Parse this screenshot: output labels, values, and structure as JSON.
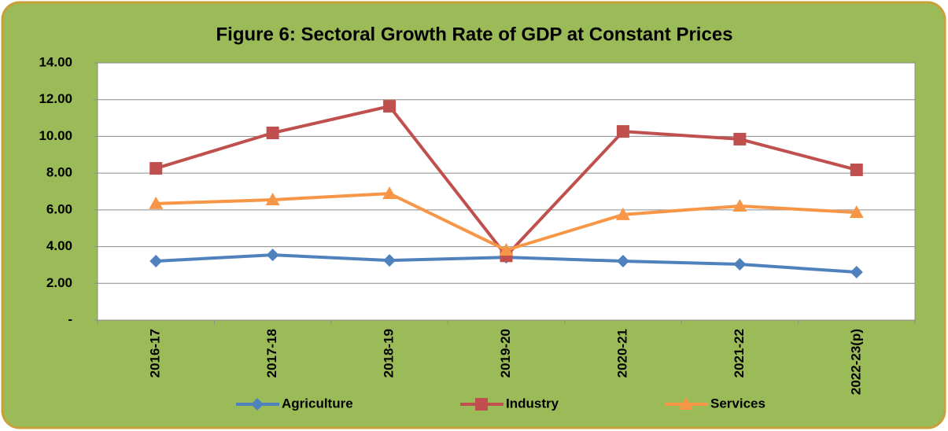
{
  "chart_data": {
    "type": "line",
    "title": "Figure 6: Sectoral Growth Rate of GDP at Constant Prices",
    "categories": [
      "2016-17",
      "2017-18",
      "2018-19",
      "2019-20",
      "2020-21",
      "2021-22",
      "2022-23(p)"
    ],
    "series": [
      {
        "name": "Agriculture",
        "color": "#4f81bd",
        "values": [
          3.21,
          3.55,
          3.25,
          3.42,
          3.21,
          3.04,
          2.61
        ]
      },
      {
        "name": "Industry",
        "color": "#c0504d",
        "values": [
          8.26,
          10.19,
          11.64,
          3.5,
          10.27,
          9.85,
          8.18
        ]
      },
      {
        "name": "Services",
        "color": "#f79646",
        "values": [
          6.34,
          6.55,
          6.89,
          3.81,
          5.74,
          6.21,
          5.86
        ]
      }
    ],
    "ylim": [
      0,
      14
    ],
    "yticks": [
      {
        "value": 0,
        "label": "-"
      },
      {
        "value": 2,
        "label": "2.00"
      },
      {
        "value": 4,
        "label": "4.00"
      },
      {
        "value": 6,
        "label": "6.00"
      },
      {
        "value": 8,
        "label": "8.00"
      },
      {
        "value": 10,
        "label": "10.00"
      },
      {
        "value": 12,
        "label": "12.00"
      },
      {
        "value": 14,
        "label": "14.00"
      }
    ],
    "grid": true,
    "legend": "bottom"
  }
}
